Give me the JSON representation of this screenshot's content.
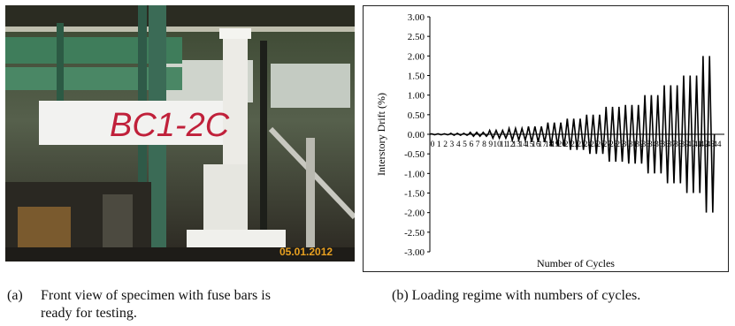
{
  "photo": {
    "specimen_label": "BC1-2C",
    "date_stamp": "05.01.2012"
  },
  "captions": {
    "a_tag": "(a)",
    "a_line1": "Front view of specimen with fuse bars is",
    "a_line2": "ready for testing.",
    "b": "(b) Loading regime with numbers of cycles."
  },
  "chart_data": {
    "type": "line",
    "title": "",
    "xlabel": "Number of Cycles",
    "ylabel": "Interstory Drift (%)",
    "ylim": [
      -3.0,
      3.0
    ],
    "yticks": [
      "3.00",
      "2.50",
      "2.00",
      "1.50",
      "1.00",
      "0.50",
      "0.00",
      "-0.50",
      "-1.00",
      "-1.50",
      "-2.00",
      "-2.50",
      "-3.00"
    ],
    "xlim": [
      0,
      45
    ],
    "xticks": [
      "0",
      "1",
      "2",
      "3",
      "4",
      "5",
      "6",
      "7",
      "8",
      "9",
      "10",
      "11",
      "12",
      "13",
      "14",
      "15",
      "16",
      "17",
      "18",
      "19",
      "20",
      "21",
      "22",
      "23",
      "24",
      "25",
      "26",
      "27",
      "28",
      "29",
      "30",
      "31",
      "32",
      "33",
      "34",
      "35",
      "36",
      "37",
      "38",
      "39",
      "40",
      "41",
      "42",
      "43",
      "44"
    ],
    "grid": false,
    "series": [
      {
        "cycles": [
          1,
          2,
          3,
          4,
          5,
          6,
          7,
          8,
          9,
          10,
          11,
          12,
          13,
          14,
          15,
          16,
          17,
          18,
          19,
          20,
          21,
          22,
          23,
          24,
          25,
          26,
          27,
          28,
          29,
          30,
          31,
          32,
          33,
          34,
          35,
          36,
          37,
          38,
          39,
          40,
          41,
          42,
          43,
          44
        ],
        "amplitude": [
          0.0125,
          0.0125,
          0.0125,
          0.025,
          0.025,
          0.025,
          0.05,
          0.05,
          0.05,
          0.1,
          0.1,
          0.1,
          0.15,
          0.15,
          0.15,
          0.2,
          0.2,
          0.2,
          0.3,
          0.3,
          0.3,
          0.4,
          0.4,
          0.4,
          0.5,
          0.5,
          0.5,
          0.7,
          0.7,
          0.7,
          0.75,
          0.75,
          0.75,
          1.0,
          1.0,
          1.0,
          1.25,
          1.25,
          1.25,
          1.5,
          1.5,
          1.5,
          2.0,
          2.0
        ],
        "color": "#000000"
      }
    ]
  }
}
